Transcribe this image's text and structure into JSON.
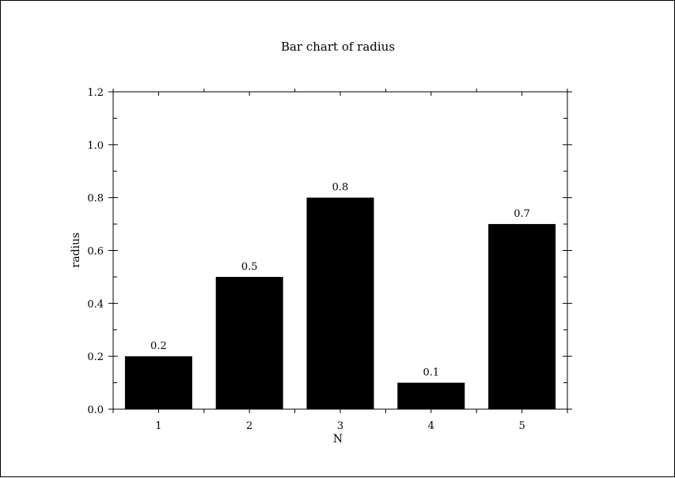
{
  "chart_data": {
    "type": "bar",
    "title": "Bar chart of radius",
    "xlabel": "N",
    "ylabel": "radius",
    "categories": [
      "1",
      "2",
      "3",
      "4",
      "5"
    ],
    "values": [
      0.2,
      0.5,
      0.8,
      0.1,
      0.7
    ],
    "value_labels": [
      "0.2",
      "0.5",
      "0.8",
      "0.1",
      "0.7"
    ],
    "ylim": [
      0,
      1.2
    ],
    "yticks": [
      0.0,
      0.2,
      0.4,
      0.6,
      0.8,
      1.0,
      1.2
    ],
    "ytick_labels": [
      "0.0",
      "0.2",
      "0.4",
      "0.6",
      "0.8",
      "1.0",
      "1.2"
    ],
    "grid": false,
    "legend": "none",
    "bar_color": "#000000"
  }
}
